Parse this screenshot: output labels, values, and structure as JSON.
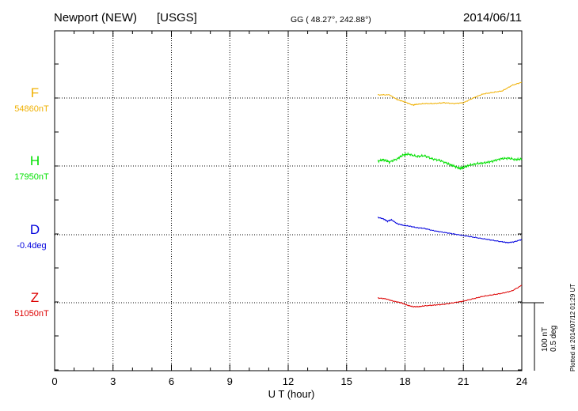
{
  "header": {
    "station": "Newport (NEW)",
    "source": "[USGS]",
    "coords": "GG ( 48.27°, 242.88°)",
    "date": "2014/06/11"
  },
  "footer": {
    "plotted": "Plotted at 2014/07/12 01:29 UT"
  },
  "chart_data": {
    "type": "line",
    "xlabel": "U T (hour)",
    "xlim": [
      0,
      24
    ],
    "xticks": [
      "0",
      "3",
      "6",
      "9",
      "12",
      "15",
      "18",
      "21",
      "24"
    ],
    "grid": true,
    "scale_bar": {
      "label1": "100 nT",
      "label2": "0.5 deg"
    },
    "series": [
      {
        "name": "F",
        "baseline": "54860nT",
        "color": "#f0b000",
        "x": [
          16.6,
          17.2,
          17.6,
          18.0,
          18.4,
          18.6,
          19.0,
          19.5,
          20.0,
          20.5,
          21.0,
          21.5,
          22.0,
          22.5,
          23.0,
          23.5,
          24.0
        ],
        "y": [
          4,
          4,
          -2,
          -5,
          -9,
          -8,
          -7,
          -7,
          -6,
          -7,
          -6,
          0,
          5,
          7,
          9,
          16,
          20
        ]
      },
      {
        "name": "H",
        "baseline": "17950nT",
        "color": "#00e000",
        "x": [
          16.6,
          16.9,
          17.2,
          17.6,
          17.9,
          18.2,
          18.6,
          19.0,
          19.4,
          19.8,
          20.2,
          20.5,
          20.8,
          21.0,
          21.3,
          21.7,
          22.1,
          22.5,
          22.9,
          23.3,
          23.7,
          24.0
        ],
        "y": [
          6,
          8,
          5,
          9,
          14,
          15,
          12,
          13,
          9,
          7,
          3,
          0,
          -3,
          -2,
          1,
          3,
          4,
          6,
          9,
          10,
          8,
          9
        ]
      },
      {
        "name": "D",
        "baseline": "-0.4deg",
        "color": "#0000dd",
        "x": [
          16.6,
          16.9,
          17.1,
          17.3,
          17.6,
          17.9,
          18.2,
          18.6,
          19.0,
          19.5,
          20.0,
          20.5,
          21.0,
          21.5,
          22.0,
          22.5,
          23.0,
          23.3,
          23.6,
          24.0
        ],
        "y": [
          22,
          20,
          17,
          19,
          14,
          12,
          11,
          9,
          8,
          5,
          3,
          1,
          -1,
          -3,
          -5,
          -7,
          -9,
          -10,
          -9,
          -6
        ]
      },
      {
        "name": "Z",
        "baseline": "51050nT",
        "color": "#dd0000",
        "x": [
          16.6,
          17.0,
          17.4,
          17.8,
          18.1,
          18.4,
          18.7,
          19.0,
          19.5,
          20.0,
          20.5,
          21.0,
          21.5,
          22.0,
          22.5,
          23.0,
          23.5,
          24.0
        ],
        "y": [
          6,
          5,
          2,
          0,
          -3,
          -5,
          -5,
          -4,
          -3,
          -2,
          0,
          2,
          5,
          8,
          10,
          12,
          15,
          22
        ]
      }
    ]
  }
}
